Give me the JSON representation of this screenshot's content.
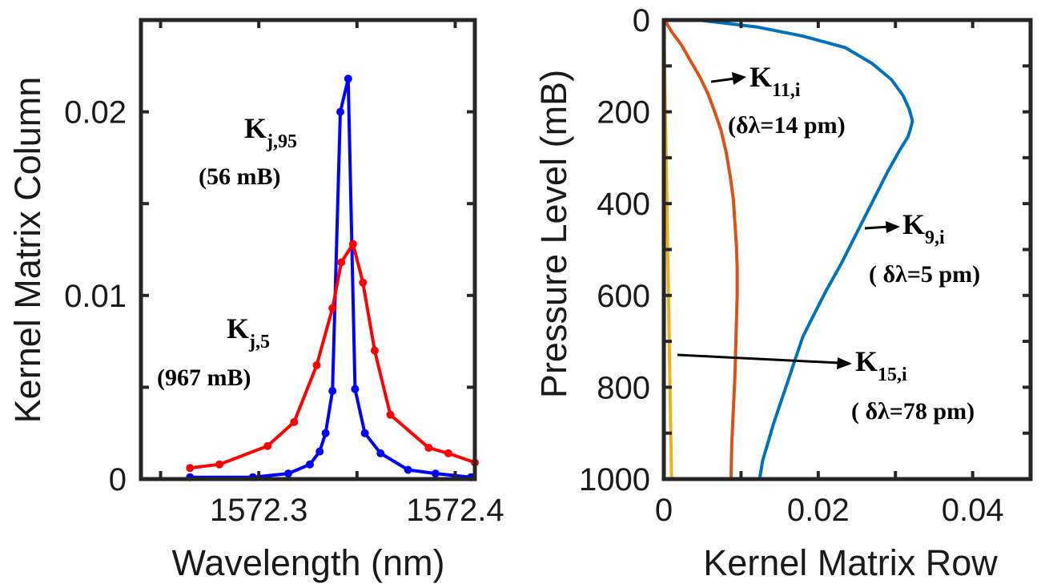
{
  "chart_data": [
    {
      "type": "line",
      "xlabel": "Wavelength (nm)",
      "ylabel": "Kernel Matrix Column",
      "xlim": [
        1572.24,
        1572.41
      ],
      "ylim": [
        0,
        0.025
      ],
      "xticks": [
        1572.3,
        1572.4
      ],
      "xtick_labels": [
        "1572.3",
        "1572.4"
      ],
      "yticks": [
        0,
        0.01,
        0.02
      ],
      "ytick_labels": [
        "0",
        "0.01",
        "0.02"
      ],
      "grid": false,
      "series": [
        {
          "name": "K_j,95 (56 mB)",
          "color": "#0000ff",
          "x": [
            1572.265,
            1572.297,
            1572.315,
            1572.326,
            1572.331,
            1572.334,
            1572.3375,
            1572.3415,
            1572.3455,
            1572.349,
            1572.354,
            1572.362,
            1572.376,
            1572.39,
            1572.408
          ],
          "y": [
            0.0001,
            0.0001,
            0.0003,
            0.0008,
            0.0015,
            0.0025,
            0.0048,
            0.02,
            0.0218,
            0.0049,
            0.0025,
            0.0014,
            0.0005,
            0.0003,
            0.0001
          ]
        },
        {
          "name": "K_j,5 (967 mB)",
          "color": "#ff0000",
          "x": [
            1572.265,
            1572.28,
            1572.3045,
            1572.318,
            1572.3295,
            1572.3375,
            1572.342,
            1572.348,
            1572.353,
            1572.359,
            1572.367,
            1572.3865,
            1572.3965,
            1572.41
          ],
          "y": [
            0.0006,
            0.0008,
            0.0018,
            0.0031,
            0.0062,
            0.0093,
            0.0118,
            0.0128,
            0.0107,
            0.007,
            0.0035,
            0.0017,
            0.0014,
            0.0009
          ]
        }
      ],
      "annotations": [
        {
          "main": "K",
          "sub": "j,95",
          "note": "(56 mB)"
        },
        {
          "main": "K",
          "sub": "j,5",
          "note": "(967 mB)"
        }
      ]
    },
    {
      "type": "line",
      "xlabel": "Kernel Matrix Row",
      "ylabel": "Pressure Level (mB)",
      "xlim": [
        0,
        0.0475
      ],
      "ylim": [
        1000,
        0
      ],
      "xticks": [
        0,
        0.02,
        0.04
      ],
      "xtick_labels": [
        "0",
        "0.02",
        "0.04"
      ],
      "yticks": [
        0,
        200,
        400,
        600,
        800,
        1000
      ],
      "ytick_labels": [
        "0",
        "200",
        "400",
        "600",
        "800",
        "1000"
      ],
      "grid": false,
      "series": [
        {
          "name": "K_9,i (δλ=5 pm)",
          "color": "#0072bd",
          "x": [
            0.0045,
            0.012,
            0.018,
            0.0235,
            0.027,
            0.0295,
            0.031,
            0.0318,
            0.0322,
            0.0319,
            0.0316,
            0.0305,
            0.029,
            0.0275,
            0.026,
            0.0245,
            0.023,
            0.021,
            0.0195,
            0.018,
            0.017,
            0.016,
            0.015,
            0.0142,
            0.0135,
            0.0128,
            0.0124
          ],
          "y": [
            0,
            15,
            35,
            60,
            95,
            130,
            165,
            195,
            220,
            240,
            255,
            285,
            330,
            380,
            430,
            480,
            530,
            590,
            640,
            690,
            740,
            790,
            840,
            880,
            920,
            960,
            1000
          ]
        },
        {
          "name": "K_11,i (δλ=14 pm)",
          "color": "#d95319",
          "x": [
            0.0001,
            0.001,
            0.0023,
            0.0035,
            0.0047,
            0.0057,
            0.0066,
            0.0074,
            0.0081,
            0.0086,
            0.009,
            0.0092,
            0.0094,
            0.0095,
            0.0095,
            0.0094,
            0.0093,
            0.0092,
            0.009,
            0.0088,
            0.0087
          ],
          "y": [
            0,
            25,
            55,
            90,
            125,
            160,
            200,
            240,
            290,
            340,
            390,
            440,
            490,
            540,
            600,
            660,
            720,
            780,
            850,
            920,
            1000
          ]
        },
        {
          "name": "K_15,i (δλ=78 pm)",
          "color": "#edb120",
          "x": [
            0.0,
            0.0002,
            0.0004,
            0.0006,
            0.0008,
            0.001
          ],
          "y": [
            0,
            200,
            400,
            600,
            800,
            1000
          ]
        }
      ],
      "annotations": [
        {
          "main": "K",
          "sub": "11,i",
          "note": "(δλ=14 pm)"
        },
        {
          "main": "K",
          "sub": "9,i",
          "note": "( δλ=5 pm)"
        },
        {
          "main": "K",
          "sub": "15,i",
          "note": "( δλ=78 pm)"
        }
      ]
    }
  ]
}
